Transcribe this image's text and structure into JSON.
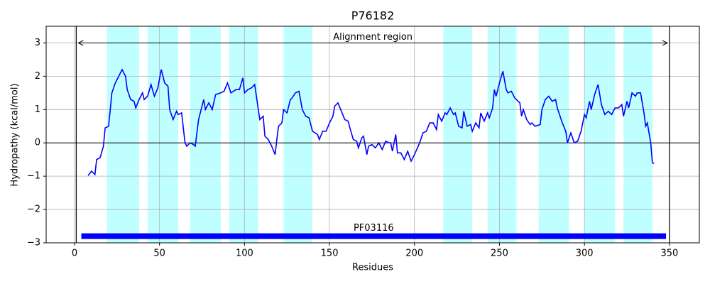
{
  "chart_data": {
    "type": "line",
    "title": "P76182",
    "x_label": "Residues",
    "y_label": "Hydropathy (kcal/mol)",
    "xlim": [
      -16.7,
      367.6
    ],
    "ylim": [
      -3,
      3.5
    ],
    "xticks": [
      0,
      50,
      100,
      150,
      200,
      250,
      300,
      350
    ],
    "yticks": [
      {
        "value": -3,
        "label": "−3"
      },
      {
        "value": -2,
        "label": "−2"
      },
      {
        "value": -1,
        "label": "−1"
      },
      0,
      1,
      2,
      3
    ],
    "grid": true,
    "zero_line": true,
    "regions": [
      [
        19,
        38
      ],
      [
        43,
        61
      ],
      [
        68,
        86
      ],
      [
        91,
        108
      ],
      [
        123,
        140
      ],
      [
        217,
        234
      ],
      [
        243,
        260
      ],
      [
        273,
        291
      ],
      [
        300,
        318
      ],
      [
        323,
        340
      ]
    ],
    "region_color": "#c0ffff",
    "alignment": {
      "label": "Alignment region",
      "start": 1,
      "end": 350,
      "y": 3
    },
    "domain": {
      "label": "PF03116",
      "start": 4,
      "end": 348,
      "y": -2.8,
      "color": "#0000ff"
    },
    "series": [
      {
        "color": "#0000ff",
        "x": [
          8,
          10,
          12,
          13,
          15,
          17,
          18,
          20,
          21,
          22,
          24,
          25,
          28,
          30,
          31,
          33,
          35,
          36,
          38,
          40,
          41,
          43,
          45,
          47,
          49,
          51,
          53,
          55,
          56,
          58,
          60,
          61,
          63,
          65,
          66,
          68,
          70,
          71,
          73,
          76,
          77,
          79,
          81,
          83,
          86,
          88,
          90,
          92,
          95,
          97,
          99,
          100,
          102,
          104,
          106,
          107,
          109,
          111,
          112,
          114,
          116,
          118,
          119,
          120,
          122,
          123,
          125,
          127,
          128,
          130,
          132,
          134,
          136,
          138,
          140,
          143,
          144,
          146,
          148,
          150,
          152,
          153,
          155,
          157,
          159,
          161,
          162,
          164,
          166,
          167,
          169,
          170,
          172,
          173,
          175,
          177,
          179,
          181,
          183,
          185,
          186,
          187,
          189,
          190,
          192,
          194,
          196,
          198,
          200,
          203,
          205,
          207,
          209,
          211,
          213,
          214,
          216,
          218,
          219,
          221,
          223,
          224,
          226,
          228,
          229,
          231,
          233,
          234,
          236,
          238,
          239,
          241,
          243,
          244,
          246,
          247,
          248,
          250,
          252,
          254,
          255,
          257,
          259,
          262,
          263,
          264,
          266,
          268,
          269,
          271,
          274,
          275,
          277,
          279,
          281,
          283,
          284,
          287,
          289,
          290,
          292,
          294,
          296,
          298,
          300,
          301,
          303,
          304,
          306,
          308,
          310,
          312,
          314,
          316,
          318,
          320,
          322,
          323,
          325,
          326,
          328,
          330,
          331,
          333,
          335,
          336,
          337,
          339,
          340,
          341
        ],
        "values": [
          -0.98,
          -0.85,
          -0.95,
          -0.5,
          -0.45,
          -0.1,
          0.45,
          0.5,
          1.0,
          1.5,
          1.8,
          1.9,
          2.2,
          2.0,
          1.6,
          1.3,
          1.25,
          1.05,
          1.3,
          1.5,
          1.3,
          1.4,
          1.75,
          1.4,
          1.65,
          2.2,
          1.8,
          1.7,
          1.0,
          0.7,
          0.95,
          0.85,
          0.9,
          0.0,
          -0.1,
          0.0,
          -0.05,
          -0.1,
          0.7,
          1.3,
          1.0,
          1.2,
          1.0,
          1.45,
          1.5,
          1.55,
          1.8,
          1.5,
          1.6,
          1.6,
          1.95,
          1.5,
          1.6,
          1.65,
          1.75,
          1.4,
          0.7,
          0.8,
          0.2,
          0.1,
          -0.1,
          -0.35,
          0.1,
          0.5,
          0.6,
          1.0,
          0.9,
          1.3,
          1.35,
          1.5,
          1.55,
          1.0,
          0.8,
          0.75,
          0.35,
          0.25,
          0.1,
          0.35,
          0.35,
          0.6,
          0.8,
          1.1,
          1.2,
          0.95,
          0.7,
          0.65,
          0.45,
          0.1,
          0.05,
          -0.15,
          0.15,
          0.2,
          -0.35,
          -0.1,
          -0.05,
          -0.15,
          0.0,
          -0.2,
          0.05,
          0.0,
          0.0,
          -0.25,
          0.25,
          -0.3,
          -0.3,
          -0.5,
          -0.25,
          -0.55,
          -0.35,
          0.0,
          0.3,
          0.35,
          0.6,
          0.6,
          0.4,
          0.85,
          0.65,
          0.9,
          0.85,
          1.05,
          0.85,
          0.9,
          0.5,
          0.45,
          0.95,
          0.5,
          0.55,
          0.35,
          0.6,
          0.45,
          0.9,
          0.65,
          0.9,
          0.75,
          1.05,
          1.6,
          1.4,
          1.8,
          2.15,
          1.6,
          1.5,
          1.55,
          1.35,
          1.2,
          0.8,
          1.0,
          0.7,
          0.55,
          0.6,
          0.5,
          0.55,
          1.0,
          1.3,
          1.4,
          1.25,
          1.3,
          1.05,
          0.6,
          0.35,
          0.0,
          0.3,
          0.0,
          0.05,
          0.35,
          0.85,
          0.75,
          1.25,
          1.0,
          1.45,
          1.75,
          1.15,
          0.85,
          0.95,
          0.85,
          1.05,
          1.05,
          1.15,
          0.8,
          1.25,
          1.05,
          1.5,
          1.4,
          1.5,
          1.5,
          0.9,
          0.5,
          0.6,
          0.0,
          -0.6,
          -0.62
        ]
      }
    ]
  }
}
